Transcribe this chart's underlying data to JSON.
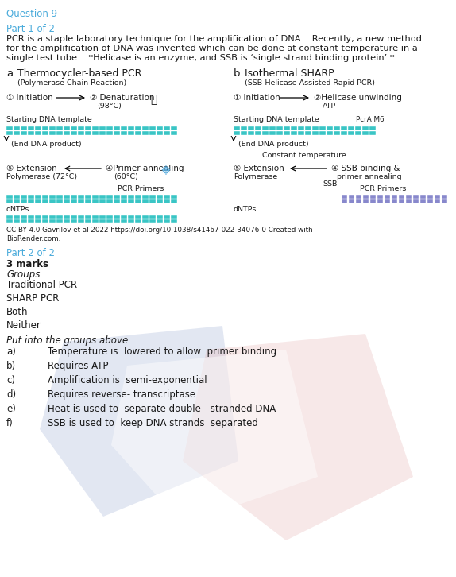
{
  "question_label": "Question 9",
  "question_color": "#4AABDB",
  "part1_label": "Part 1 of 2",
  "part1_color": "#4AABDB",
  "part1_line1": "PCR is a staple laboratory technique for the amplification of DNA.   Recently, a new method",
  "part1_line2": "for the amplification of DNA was invented which can be done at constant temperature in a",
  "part1_line3": "single test tube.   *Helicase is an enzyme, and SSB is ‘single strand binding protein’.*",
  "cc_text_line1": "CC BY 4.0 Gavrilov et al 2022 https://doi.org/10.1038/s41467-022-34076-0 Created with",
  "cc_text_line2": "BioRender.com.",
  "part2_label": "Part 2 of 2",
  "part2_color": "#4AABDB",
  "marks_text": "3 marks",
  "groups_label": "Groups",
  "group_items": [
    "Traditional PCR",
    "SHARP PCR",
    "Both",
    "Neither"
  ],
  "put_text": "Put into the groups above",
  "items": [
    {
      "label": "a)",
      "text": "Temperature is  lowered to allow  primer binding"
    },
    {
      "label": "b)",
      "text": "Requires ATP"
    },
    {
      "label": "c)",
      "text": "Amplification is  semi-exponential"
    },
    {
      "label": "d)",
      "text": "Requires reverse- transcriptase"
    },
    {
      "label": "e)",
      "text": "Heat is used to  separate double-  stranded DNA"
    },
    {
      "label": "f)",
      "text": "SSB is used to  keep DNA strands  separated"
    }
  ],
  "bg_color": "#ffffff",
  "text_color": "#1a1a1a",
  "fs": 8.5,
  "fs_small": 7.5,
  "fs_tiny": 6.8
}
